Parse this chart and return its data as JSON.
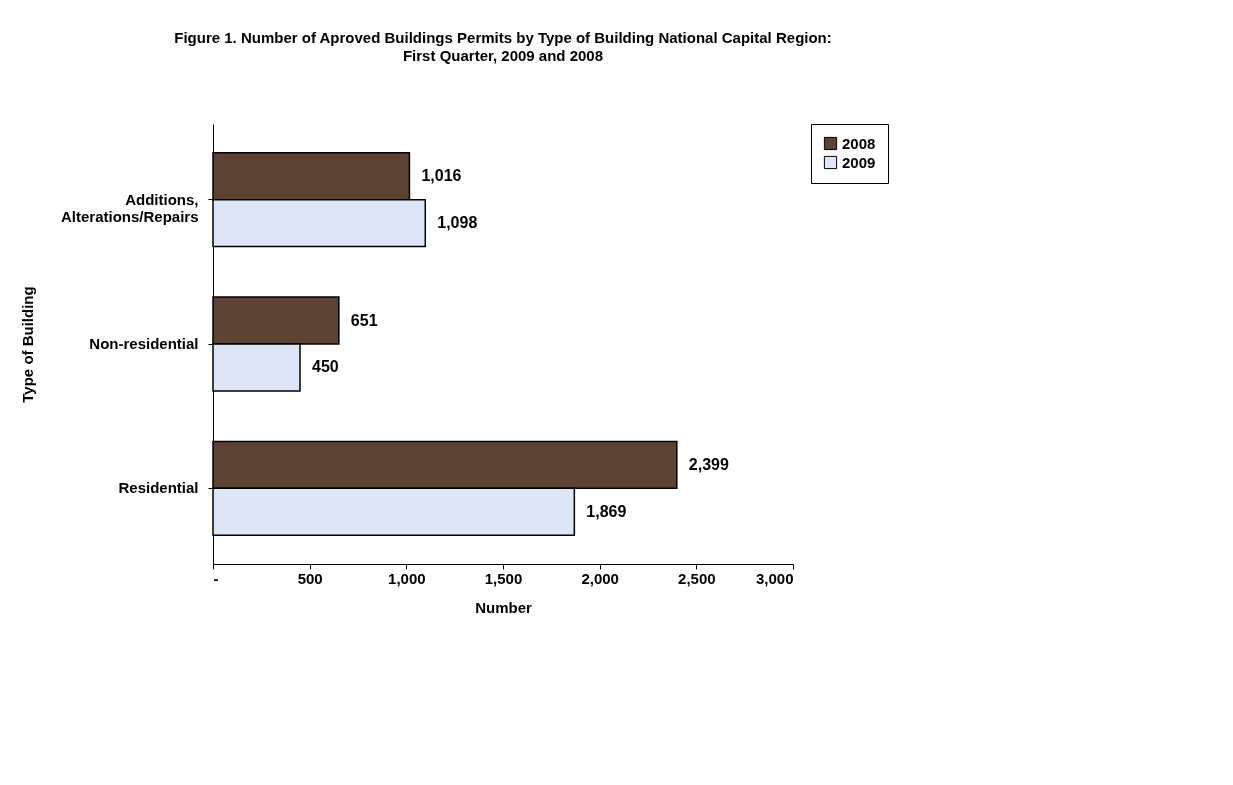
{
  "chart_data": {
    "type": "bar",
    "orientation": "horizontal",
    "title": "Figure 1. Number of Aproved Buildings Permits by Type of Building National Capital Region:",
    "subtitle": "First Quarter, 2009 and 2008",
    "categories": [
      "Additions, Alterations/Repairs",
      "Non-residential",
      "Residential"
    ],
    "series": [
      {
        "name": "2008",
        "color": "#5c4232",
        "values": [
          1016,
          651,
          2399
        ],
        "value_labels": [
          "1,016",
          "651",
          "2,399"
        ]
      },
      {
        "name": "2009",
        "color": "#dce6f7",
        "values": [
          1098,
          450,
          1869
        ],
        "value_labels": [
          "1,098",
          "450",
          "1,869"
        ]
      }
    ],
    "xlabel": "Number",
    "ylabel": "Type of Building",
    "xlim": [
      0,
      3000
    ],
    "xticks": [
      {
        "value": 0,
        "label": "-"
      },
      {
        "value": 500,
        "label": "500"
      },
      {
        "value": 1000,
        "label": "1,000"
      },
      {
        "value": 1500,
        "label": "1,500"
      },
      {
        "value": 2000,
        "label": "2,000"
      },
      {
        "value": 2500,
        "label": "2,500"
      },
      {
        "value": 3000,
        "label": "3,000"
      }
    ],
    "grid": false,
    "legend": "right"
  }
}
